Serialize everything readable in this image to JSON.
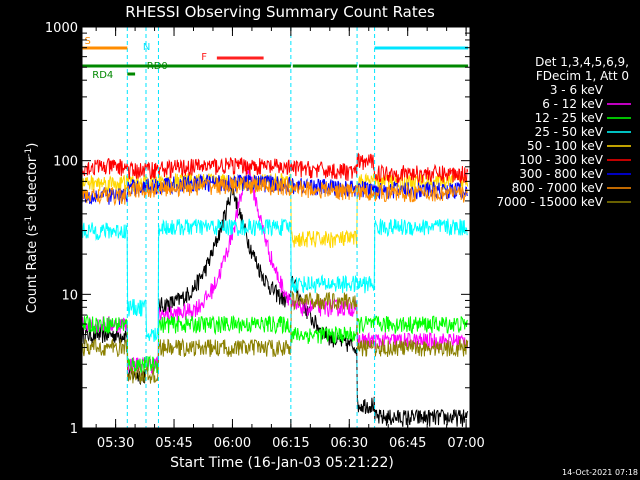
{
  "chart_data": {
    "type": "line",
    "title": "RHESSI Observing Summary Count Rates",
    "xlabel": "Start Time (16-Jan-03 05:21:22)",
    "ylabel_parts": [
      "Count Rate (s",
      "-1",
      " detector",
      "-1",
      ")"
    ],
    "y_scale": "log",
    "ylim": [
      1,
      1000
    ],
    "xlim_minutes": [
      "05:21:22",
      "07:01:00"
    ],
    "y_ticks": [
      "1",
      "10",
      "100",
      "1000"
    ],
    "x_ticks": [
      "05:30",
      "05:45",
      "06:00",
      "06:15",
      "06:30",
      "06:45",
      "07:00"
    ],
    "legend_header": [
      "Det 1,3,4,5,6,9,",
      "FDecim 1, Att 0"
    ],
    "timestamp": "14-Oct-2021 07:18",
    "flags": {
      "S": {
        "label": "S",
        "color": "#ff8c00"
      },
      "N": {
        "label": "N",
        "color": "#00e5ff"
      },
      "F": {
        "label": "F",
        "color": "#ff2020"
      },
      "RD0": {
        "label": "RD0",
        "color": "#008800"
      },
      "RD4": {
        "label": "RD4",
        "color": "#008800"
      }
    },
    "series": [
      {
        "name": "3 - 6 keV",
        "color": "#000000"
      },
      {
        "name": "6 - 12 keV",
        "color": "#ff00ff"
      },
      {
        "name": "12 - 25 keV",
        "color": "#00ff00"
      },
      {
        "name": "25 - 50 keV",
        "color": "#00ffff"
      },
      {
        "name": "50 - 100 keV",
        "color": "#ffd700"
      },
      {
        "name": "100 - 300 keV",
        "color": "#ff0000"
      },
      {
        "name": "300 - 800 keV",
        "color": "#0000ff"
      },
      {
        "name": "800 - 7000 keV",
        "color": "#ff8c00"
      },
      {
        "name": "7000 - 15000 keV",
        "color": "#8b8000"
      }
    ]
  }
}
